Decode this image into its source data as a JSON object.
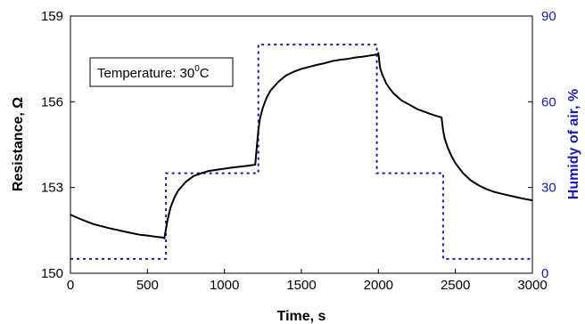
{
  "chart_data": {
    "type": "line",
    "title": "",
    "xlabel": "Time, s",
    "ylabel_left": "Resistance, Ω",
    "ylabel_right": "Humidy of air, %",
    "xlim": [
      0,
      3000
    ],
    "ylim_left": [
      150,
      159
    ],
    "ylim_right": [
      0,
      90
    ],
    "x_ticks": [
      0,
      500,
      1000,
      1500,
      2000,
      2500,
      3000
    ],
    "y_left_ticks": [
      150,
      153,
      156,
      159
    ],
    "y_right_ticks": [
      0,
      30,
      60,
      90
    ],
    "grid": false,
    "annotation": {
      "text_main": "Temperature: 30",
      "text_sup": "0",
      "text_tail": "C"
    },
    "colors": {
      "resistance": "#000000",
      "humidity": "#1a1aa8"
    },
    "series": [
      {
        "axis": "left",
        "style": "solid",
        "x": [
          0,
          50,
          100,
          150,
          200,
          250,
          300,
          350,
          400,
          450,
          500,
          550,
          600,
          610,
          620,
          630,
          650,
          675,
          700,
          750,
          800,
          850,
          900,
          950,
          1000,
          1050,
          1100,
          1150,
          1200,
          1210,
          1220,
          1230,
          1250,
          1275,
          1300,
          1350,
          1400,
          1450,
          1500,
          1550,
          1600,
          1650,
          1700,
          1750,
          1800,
          1850,
          1900,
          1950,
          1990,
          2000,
          2010,
          2025,
          2050,
          2075,
          2100,
          2150,
          2200,
          2250,
          2300,
          2350,
          2400,
          2410,
          2420,
          2430,
          2450,
          2475,
          2500,
          2550,
          2600,
          2650,
          2700,
          2750,
          2800,
          2850,
          2900,
          2950,
          3000
        ],
        "y": [
          152.05,
          151.93,
          151.82,
          151.72,
          151.65,
          151.58,
          151.52,
          151.46,
          151.4,
          151.35,
          151.32,
          151.28,
          151.25,
          151.22,
          151.55,
          151.85,
          152.3,
          152.65,
          152.9,
          153.2,
          153.4,
          153.5,
          153.58,
          153.62,
          153.66,
          153.7,
          153.73,
          153.76,
          153.8,
          154.4,
          155.0,
          155.4,
          155.8,
          156.15,
          156.4,
          156.7,
          156.92,
          157.05,
          157.15,
          157.22,
          157.29,
          157.35,
          157.42,
          157.47,
          157.5,
          157.55,
          157.58,
          157.62,
          157.65,
          157.7,
          157.2,
          156.95,
          156.65,
          156.45,
          156.28,
          156.05,
          155.9,
          155.75,
          155.65,
          155.55,
          155.47,
          155.45,
          155.0,
          154.72,
          154.4,
          154.1,
          153.85,
          153.5,
          153.25,
          153.08,
          152.95,
          152.85,
          152.78,
          152.72,
          152.66,
          152.6,
          152.55
        ]
      },
      {
        "axis": "right",
        "style": "dotted",
        "x": [
          0,
          620,
          620,
          1220,
          1220,
          1990,
          1990,
          2420,
          2420,
          3000
        ],
        "y": [
          5,
          5,
          35,
          35,
          80,
          80,
          35,
          35,
          5,
          5
        ]
      }
    ]
  }
}
